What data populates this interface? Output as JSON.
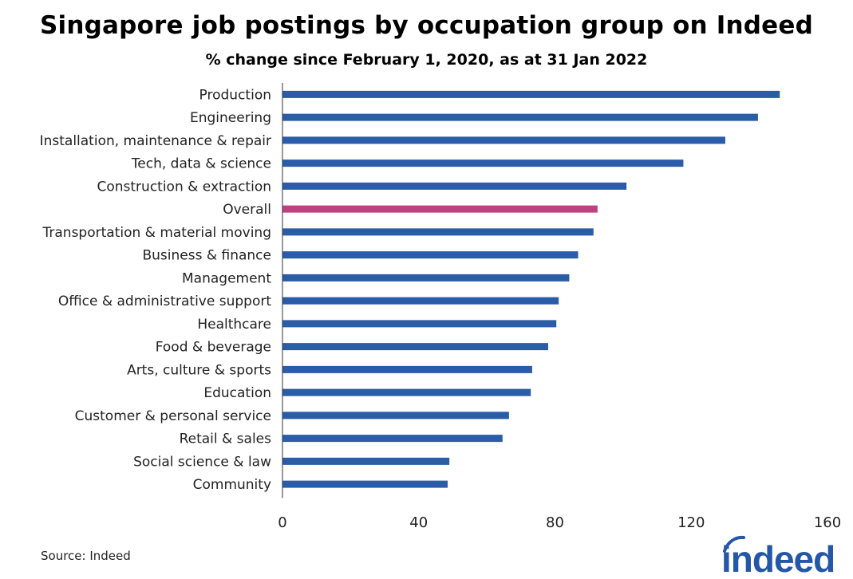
{
  "chart_data": {
    "type": "bar",
    "orientation": "horizontal",
    "title": "Singapore job postings by occupation group on Indeed",
    "subtitle": "% change since February 1, 2020, as at 31 Jan 2022",
    "categories": [
      "Production",
      "Engineering",
      "Installation, maintenance & repair",
      "Tech, data & science",
      "Construction & extraction",
      "Overall",
      "Transportation & material moving",
      "Business & finance",
      "Management",
      "Office & administrative support",
      "Healthcare",
      "Food & beverage",
      "Arts, culture & sports",
      "Education",
      "Customer & personal service",
      "Retail & sales",
      "Social science & law",
      "Community"
    ],
    "values": [
      146,
      139.6,
      130,
      117.7,
      101,
      92.5,
      91.3,
      86.8,
      84.2,
      81.1,
      80.4,
      78,
      73.3,
      72.9,
      66.5,
      64.6,
      49,
      48.5
    ],
    "highlight": "Overall",
    "xlim": [
      0,
      160
    ],
    "xticks": [
      "0",
      "40",
      "80",
      "120",
      "160"
    ],
    "xlabel": "",
    "ylabel": "",
    "grid": false,
    "colors": {
      "bar": "#2a5ca8",
      "highlight": "#c0417f"
    }
  },
  "footer": {
    "source": "Source: Indeed",
    "logo": "indeed"
  }
}
